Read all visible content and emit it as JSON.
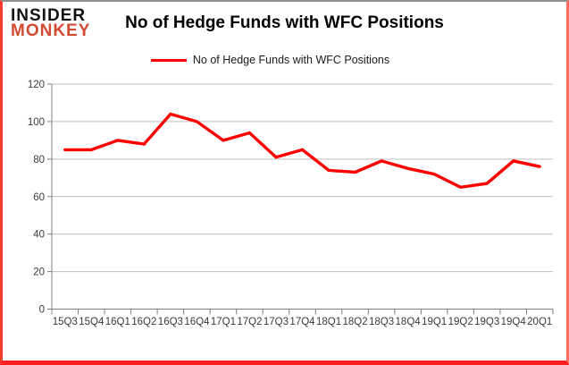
{
  "branding": {
    "logo_line1": "INSIDER",
    "logo_line2": "MONKEY"
  },
  "header": {
    "title": "No of Hedge Funds with WFC Positions"
  },
  "legend": {
    "label": "No of Hedge Funds with WFC Positions",
    "line_color": "#ff0000"
  },
  "chart_data": {
    "type": "line",
    "title": "No of Hedge Funds with WFC Positions",
    "categories": [
      "15Q3",
      "15Q4",
      "16Q1",
      "16Q2",
      "16Q3",
      "16Q4",
      "17Q1",
      "17Q2",
      "17Q3",
      "17Q4",
      "18Q1",
      "18Q2",
      "18Q3",
      "18Q4",
      "19Q1",
      "19Q2",
      "19Q3",
      "19Q4",
      "20Q1"
    ],
    "series": [
      {
        "name": "No of Hedge Funds with WFC Positions",
        "color": "#ff0000",
        "values": [
          85,
          85,
          90,
          88,
          104,
          100,
          90,
          94,
          81,
          85,
          74,
          73,
          79,
          75,
          72,
          65,
          67,
          79,
          76
        ]
      }
    ],
    "ylim": [
      0,
      120
    ],
    "ytick_interval": 20,
    "yticks": [
      0,
      20,
      40,
      60,
      80,
      100,
      120
    ],
    "grid": "horizontal",
    "legend_position": "top"
  },
  "colors": {
    "series_red": "#ff0000",
    "logo_red": "#d14a32",
    "grid_gray": "#bfbfbf",
    "axis_gray": "#7f7f7f",
    "tick_text": "#3a3a3a"
  }
}
